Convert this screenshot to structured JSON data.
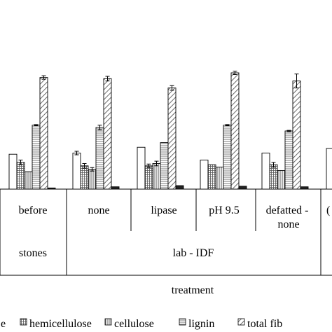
{
  "chart_data": {
    "type": "bar",
    "title": "",
    "xlabel": "treatment",
    "ylabel": "",
    "ylim": [
      0,
      100
    ],
    "groups_level1": [
      "before",
      "none",
      "lipase",
      "pH 9.5",
      "defatted - none",
      "("
    ],
    "groups_level2": [
      "stones",
      "lab - IDF"
    ],
    "categories": [
      "before",
      "none",
      "lipase",
      "pH 9.5",
      "defatted - none"
    ],
    "series": [
      {
        "name": "e",
        "pattern": "white",
        "values": [
          30,
          31,
          36,
          25,
          31
        ]
      },
      {
        "name": "hemicellulose",
        "pattern": "grid",
        "values": [
          23,
          20,
          20,
          21,
          21
        ]
      },
      {
        "name": "cellulose",
        "pattern": "vertical",
        "values": [
          15,
          17,
          22,
          19,
          16
        ]
      },
      {
        "name": "lignin",
        "pattern": "hlines",
        "values": [
          55,
          53,
          40,
          55,
          50
        ]
      },
      {
        "name": "total fib",
        "pattern": "hatch",
        "values": [
          96,
          95,
          87,
          100,
          93
        ]
      },
      {
        "name": "",
        "pattern": "black",
        "values": [
          1,
          2,
          3,
          2.5,
          2
        ]
      }
    ],
    "error_bars": [
      [
        0,
        2,
        0,
        0.5,
        1.5,
        0
      ],
      [
        1.5,
        2,
        1.5,
        2,
        2,
        0
      ],
      [
        0,
        1.5,
        2,
        0,
        2,
        0
      ],
      [
        0,
        0,
        0,
        0.5,
        1.5,
        0
      ],
      [
        0,
        2,
        0,
        0.5,
        6,
        0
      ]
    ],
    "legend": [
      "e",
      "hemicellulose",
      "cellulose",
      "lignin",
      "total fib"
    ],
    "legend_position": "bottom",
    "grid": false
  }
}
